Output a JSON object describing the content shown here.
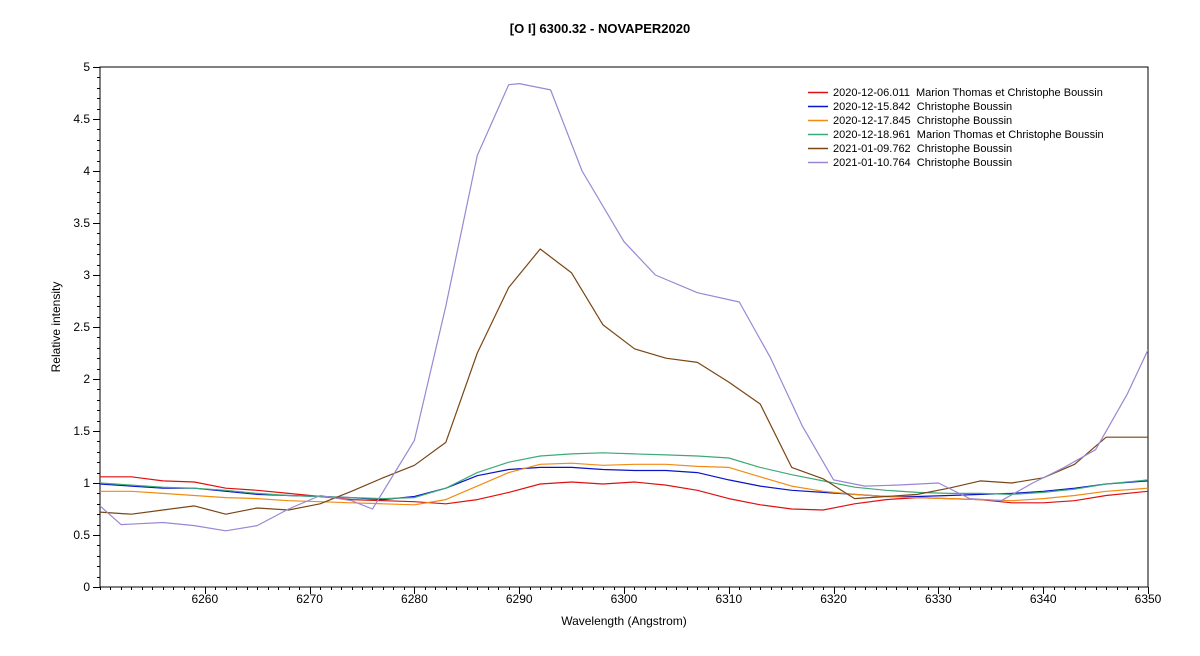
{
  "chart_data": {
    "type": "line",
    "title": "[O I] 6300.32 - NOVAPER2020",
    "xlabel": "Wavelength (Angstrom)",
    "ylabel": "Relative intensity",
    "xlim": [
      6250,
      6350
    ],
    "ylim": [
      0,
      5
    ],
    "x_ticks": [
      6260,
      6270,
      6280,
      6290,
      6300,
      6310,
      6320,
      6330,
      6340,
      6350
    ],
    "x_tick_labels": [
      "6260",
      "6270",
      "6280",
      "6290",
      "6300",
      "6310",
      "6320",
      "6330",
      "6340",
      "6350"
    ],
    "y_ticks": [
      0,
      0.5,
      1,
      1.5,
      2,
      2.5,
      3,
      3.5,
      4,
      4.5,
      5
    ],
    "y_tick_labels": [
      "0",
      "0.5",
      "1",
      "1.5",
      "2",
      "2.5",
      "3",
      "3.5",
      "4",
      "4.5",
      "5"
    ],
    "x_minor_step": 1,
    "y_minor_step": 0.1,
    "grid": false,
    "legend_position": "top-right",
    "series": [
      {
        "name": "2020-12-06.011  Marion Thomas et Christophe Boussin",
        "color": "#e01010",
        "points": [
          [
            6250,
            1.06
          ],
          [
            6253,
            1.06
          ],
          [
            6256,
            1.02
          ],
          [
            6259,
            1.01
          ],
          [
            6262,
            0.95
          ],
          [
            6265,
            0.93
          ],
          [
            6268,
            0.9
          ],
          [
            6271,
            0.87
          ],
          [
            6274,
            0.84
          ],
          [
            6277,
            0.83
          ],
          [
            6280,
            0.82
          ],
          [
            6283,
            0.8
          ],
          [
            6286,
            0.84
          ],
          [
            6289,
            0.91
          ],
          [
            6292,
            0.99
          ],
          [
            6295,
            1.01
          ],
          [
            6298,
            0.99
          ],
          [
            6301,
            1.01
          ],
          [
            6304,
            0.98
          ],
          [
            6307,
            0.93
          ],
          [
            6310,
            0.85
          ],
          [
            6313,
            0.79
          ],
          [
            6316,
            0.75
          ],
          [
            6319,
            0.74
          ],
          [
            6322,
            0.8
          ],
          [
            6325,
            0.84
          ],
          [
            6328,
            0.86
          ],
          [
            6331,
            0.85
          ],
          [
            6334,
            0.84
          ],
          [
            6337,
            0.81
          ],
          [
            6340,
            0.81
          ],
          [
            6343,
            0.83
          ],
          [
            6346,
            0.88
          ],
          [
            6350,
            0.92
          ]
        ]
      },
      {
        "name": "2020-12-15.842  Christophe Boussin",
        "color": "#0a14c8",
        "points": [
          [
            6250,
            0.99
          ],
          [
            6253,
            0.97
          ],
          [
            6256,
            0.95
          ],
          [
            6259,
            0.95
          ],
          [
            6262,
            0.92
          ],
          [
            6265,
            0.89
          ],
          [
            6268,
            0.88
          ],
          [
            6271,
            0.87
          ],
          [
            6274,
            0.86
          ],
          [
            6277,
            0.84
          ],
          [
            6280,
            0.87
          ],
          [
            6283,
            0.95
          ],
          [
            6286,
            1.07
          ],
          [
            6289,
            1.13
          ],
          [
            6292,
            1.15
          ],
          [
            6295,
            1.15
          ],
          [
            6298,
            1.13
          ],
          [
            6301,
            1.12
          ],
          [
            6304,
            1.12
          ],
          [
            6307,
            1.1
          ],
          [
            6310,
            1.03
          ],
          [
            6313,
            0.97
          ],
          [
            6316,
            0.93
          ],
          [
            6319,
            0.91
          ],
          [
            6322,
            0.89
          ],
          [
            6325,
            0.87
          ],
          [
            6328,
            0.87
          ],
          [
            6331,
            0.88
          ],
          [
            6334,
            0.89
          ],
          [
            6337,
            0.9
          ],
          [
            6340,
            0.92
          ],
          [
            6343,
            0.95
          ],
          [
            6346,
            0.99
          ],
          [
            6350,
            1.02
          ]
        ]
      },
      {
        "name": "2020-12-17.845  Christophe Boussin",
        "color": "#f08c14",
        "points": [
          [
            6250,
            0.92
          ],
          [
            6253,
            0.92
          ],
          [
            6256,
            0.9
          ],
          [
            6259,
            0.88
          ],
          [
            6262,
            0.86
          ],
          [
            6265,
            0.85
          ],
          [
            6268,
            0.83
          ],
          [
            6271,
            0.82
          ],
          [
            6274,
            0.81
          ],
          [
            6277,
            0.8
          ],
          [
            6280,
            0.79
          ],
          [
            6283,
            0.84
          ],
          [
            6286,
            0.97
          ],
          [
            6289,
            1.1
          ],
          [
            6292,
            1.18
          ],
          [
            6295,
            1.19
          ],
          [
            6298,
            1.17
          ],
          [
            6301,
            1.18
          ],
          [
            6304,
            1.18
          ],
          [
            6307,
            1.16
          ],
          [
            6310,
            1.15
          ],
          [
            6313,
            1.06
          ],
          [
            6316,
            0.97
          ],
          [
            6319,
            0.92
          ],
          [
            6322,
            0.89
          ],
          [
            6325,
            0.87
          ],
          [
            6328,
            0.86
          ],
          [
            6331,
            0.85
          ],
          [
            6334,
            0.84
          ],
          [
            6337,
            0.83
          ],
          [
            6340,
            0.85
          ],
          [
            6343,
            0.88
          ],
          [
            6346,
            0.92
          ],
          [
            6350,
            0.95
          ]
        ]
      },
      {
        "name": "2020-12-18.961  Marion Thomas et Christophe Boussin",
        "color": "#3caa78",
        "points": [
          [
            6250,
            1.0
          ],
          [
            6253,
            0.98
          ],
          [
            6256,
            0.96
          ],
          [
            6259,
            0.95
          ],
          [
            6262,
            0.93
          ],
          [
            6265,
            0.9
          ],
          [
            6268,
            0.88
          ],
          [
            6271,
            0.87
          ],
          [
            6274,
            0.86
          ],
          [
            6277,
            0.85
          ],
          [
            6280,
            0.86
          ],
          [
            6283,
            0.95
          ],
          [
            6286,
            1.1
          ],
          [
            6289,
            1.2
          ],
          [
            6292,
            1.26
          ],
          [
            6295,
            1.28
          ],
          [
            6298,
            1.29
          ],
          [
            6301,
            1.28
          ],
          [
            6304,
            1.27
          ],
          [
            6307,
            1.26
          ],
          [
            6310,
            1.24
          ],
          [
            6313,
            1.15
          ],
          [
            6316,
            1.08
          ],
          [
            6319,
            1.02
          ],
          [
            6322,
            0.96
          ],
          [
            6325,
            0.93
          ],
          [
            6328,
            0.91
          ],
          [
            6331,
            0.9
          ],
          [
            6334,
            0.9
          ],
          [
            6337,
            0.89
          ],
          [
            6340,
            0.91
          ],
          [
            6343,
            0.94
          ],
          [
            6346,
            0.99
          ],
          [
            6350,
            1.03
          ]
        ]
      },
      {
        "name": "2021-01-09.762  Christophe Boussin",
        "color": "#7a4614",
        "points": [
          [
            6250,
            0.72
          ],
          [
            6253,
            0.7
          ],
          [
            6256,
            0.74
          ],
          [
            6259,
            0.78
          ],
          [
            6262,
            0.7
          ],
          [
            6265,
            0.76
          ],
          [
            6268,
            0.74
          ],
          [
            6271,
            0.8
          ],
          [
            6274,
            0.92
          ],
          [
            6277,
            1.05
          ],
          [
            6280,
            1.17
          ],
          [
            6283,
            1.39
          ],
          [
            6286,
            2.25
          ],
          [
            6289,
            2.88
          ],
          [
            6292,
            3.25
          ],
          [
            6295,
            3.02
          ],
          [
            6298,
            2.52
          ],
          [
            6301,
            2.29
          ],
          [
            6304,
            2.2
          ],
          [
            6307,
            2.16
          ],
          [
            6310,
            1.97
          ],
          [
            6313,
            1.76
          ],
          [
            6316,
            1.15
          ],
          [
            6319,
            1.04
          ],
          [
            6322,
            0.85
          ],
          [
            6325,
            0.87
          ],
          [
            6328,
            0.89
          ],
          [
            6331,
            0.95
          ],
          [
            6334,
            1.02
          ],
          [
            6337,
            1.0
          ],
          [
            6340,
            1.05
          ],
          [
            6343,
            1.18
          ],
          [
            6346,
            1.44
          ],
          [
            6350,
            1.44
          ]
        ]
      },
      {
        "name": "2021-01-10.764  Christophe Boussin",
        "color": "#9b87d2",
        "points": [
          [
            6250,
            0.78
          ],
          [
            6252,
            0.6
          ],
          [
            6256,
            0.62
          ],
          [
            6259,
            0.59
          ],
          [
            6262,
            0.54
          ],
          [
            6265,
            0.59
          ],
          [
            6268,
            0.75
          ],
          [
            6271,
            0.88
          ],
          [
            6274,
            0.83
          ],
          [
            6276,
            0.75
          ],
          [
            6280,
            1.41
          ],
          [
            6283,
            2.7
          ],
          [
            6286,
            4.15
          ],
          [
            6289,
            4.83
          ],
          [
            6290,
            4.84
          ],
          [
            6293,
            4.78
          ],
          [
            6296,
            4.0
          ],
          [
            6300,
            3.32
          ],
          [
            6303,
            3.0
          ],
          [
            6307,
            2.83
          ],
          [
            6311,
            2.74
          ],
          [
            6314,
            2.2
          ],
          [
            6317,
            1.55
          ],
          [
            6320,
            1.03
          ],
          [
            6323,
            0.97
          ],
          [
            6326,
            0.98
          ],
          [
            6330,
            1.0
          ],
          [
            6333,
            0.85
          ],
          [
            6336,
            0.83
          ],
          [
            6339,
            1.0
          ],
          [
            6342,
            1.15
          ],
          [
            6345,
            1.32
          ],
          [
            6348,
            1.85
          ],
          [
            6350,
            2.28
          ]
        ]
      }
    ]
  }
}
